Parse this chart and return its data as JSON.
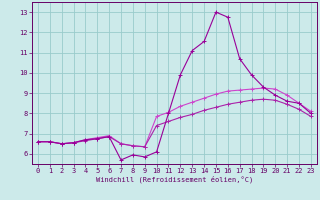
{
  "xlabel": "Windchill (Refroidissement éolien,°C)",
  "xlim": [
    -0.5,
    23.5
  ],
  "ylim": [
    5.5,
    13.5
  ],
  "yticks": [
    6,
    7,
    8,
    9,
    10,
    11,
    12,
    13
  ],
  "xticks": [
    0,
    1,
    2,
    3,
    4,
    5,
    6,
    7,
    8,
    9,
    10,
    11,
    12,
    13,
    14,
    15,
    16,
    17,
    18,
    19,
    20,
    21,
    22,
    23
  ],
  "bg_color": "#cceaea",
  "grid_color": "#99cccc",
  "line_color1": "#990099",
  "line_color2": "#cc44cc",
  "line_color3": "#aa22aa",
  "series1_x": [
    0,
    1,
    2,
    3,
    4,
    5,
    6,
    7,
    8,
    9,
    10,
    11,
    12,
    13,
    14,
    15,
    16,
    17,
    18,
    19,
    20,
    21,
    22,
    23
  ],
  "series1_y": [
    6.6,
    6.6,
    6.5,
    6.55,
    6.7,
    6.75,
    6.85,
    5.7,
    5.95,
    5.85,
    6.1,
    8.0,
    9.9,
    11.1,
    11.55,
    13.0,
    12.75,
    10.7,
    9.9,
    9.3,
    8.9,
    8.6,
    8.5,
    8.0
  ],
  "series2_x": [
    0,
    1,
    2,
    3,
    4,
    5,
    6,
    7,
    8,
    9,
    10,
    11,
    12,
    13,
    14,
    15,
    16,
    17,
    18,
    19,
    20,
    21,
    22,
    23
  ],
  "series2_y": [
    6.6,
    6.6,
    6.5,
    6.55,
    6.7,
    6.8,
    6.9,
    6.5,
    6.4,
    6.35,
    7.85,
    8.05,
    8.35,
    8.55,
    8.75,
    8.95,
    9.1,
    9.15,
    9.2,
    9.25,
    9.2,
    8.9,
    8.5,
    8.1
  ],
  "series3_x": [
    0,
    1,
    2,
    3,
    4,
    5,
    6,
    7,
    8,
    9,
    10,
    11,
    12,
    13,
    14,
    15,
    16,
    17,
    18,
    19,
    20,
    21,
    22,
    23
  ],
  "series3_y": [
    6.6,
    6.6,
    6.5,
    6.55,
    6.65,
    6.75,
    6.85,
    6.5,
    6.4,
    6.35,
    7.4,
    7.6,
    7.8,
    7.95,
    8.15,
    8.3,
    8.45,
    8.55,
    8.65,
    8.7,
    8.65,
    8.45,
    8.2,
    7.85
  ]
}
